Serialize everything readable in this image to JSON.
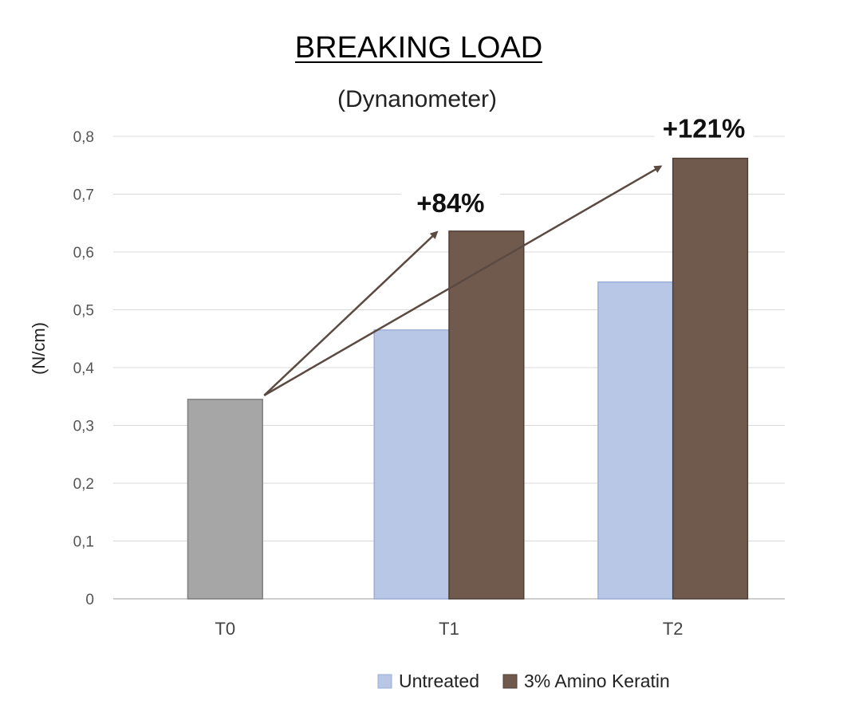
{
  "chart_data": {
    "type": "bar",
    "title": "BREAKING LOAD",
    "subtitle": "(Dynanometer)",
    "ylabel": "(N/cm)",
    "xlabel": "",
    "ylim": [
      0,
      0.8
    ],
    "yticks": [
      "0",
      "0,1",
      "0,2",
      "0,3",
      "0,4",
      "0,5",
      "0,6",
      "0,7",
      "0,8"
    ],
    "categories": [
      "T0",
      "T1",
      "T2"
    ],
    "baseline": {
      "category": "T0",
      "value": 0.345,
      "color": "#a6a6a6"
    },
    "series": [
      {
        "name": "Untreated",
        "color": "#b8c7e6",
        "values": [
          null,
          0.465,
          0.548
        ]
      },
      {
        "name": "3% Amino Keratin",
        "color": "#705a4e",
        "values": [
          null,
          0.636,
          0.762
        ]
      }
    ],
    "grid": true,
    "legend_position": "bottom",
    "annotations": [
      {
        "text": "+84%",
        "category": "T1",
        "series": "3% Amino Keratin"
      },
      {
        "text": "+121%",
        "category": "T2",
        "series": "3% Amino Keratin"
      }
    ],
    "arrow_color": "#5b4a42"
  }
}
